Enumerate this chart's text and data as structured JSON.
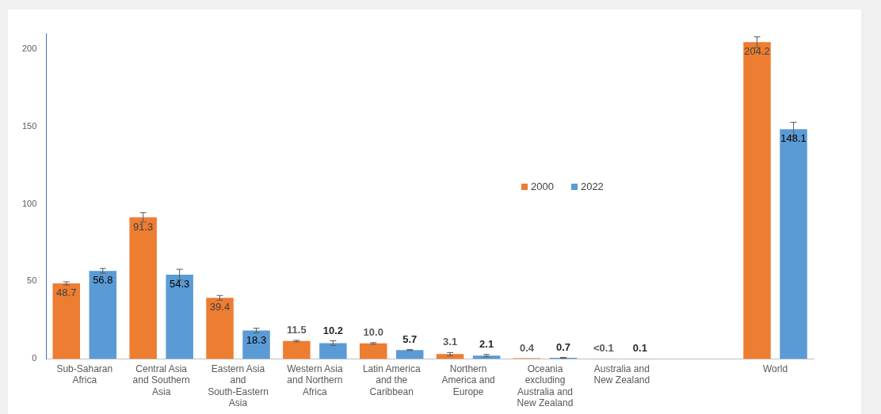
{
  "chart_data": {
    "type": "bar",
    "categories": [
      "Sub-Saharan Africa",
      "Central Asia and Southern Asia",
      "Eastern Asia and South-Eastern Asia",
      "Western Asia and Northern Africa",
      "Latin America and the Caribbean",
      "Northern America and Europe",
      "Oceania excluding Australia and New Zealand",
      "Australia and New Zealand",
      null,
      "World"
    ],
    "series": [
      {
        "name": "2000",
        "color": "#ed7d31",
        "values": [
          48.7,
          91.3,
          39.4,
          11.5,
          10.0,
          3.1,
          0.4,
          0.05,
          null,
          204.2
        ],
        "errors": [
          1,
          3,
          1.5,
          0.5,
          0.5,
          1,
          null,
          null,
          null,
          3.5
        ],
        "value_labels": [
          "48.7",
          "91.3",
          "39.4",
          "11.5",
          "10.0",
          "3.1",
          "0.4",
          "<0.1",
          null,
          "204.2"
        ]
      },
      {
        "name": "2022",
        "color": "#5b9bd5",
        "values": [
          56.8,
          54.3,
          18.3,
          10.2,
          5.7,
          2.1,
          0.7,
          0.1,
          null,
          148.1
        ],
        "errors": [
          1.5,
          3.5,
          1.5,
          1.5,
          0.3,
          0.8,
          0.3,
          null,
          null,
          4.5
        ],
        "value_labels": [
          "56.8",
          "54.3",
          "18.3",
          "10.2",
          "5.7",
          "2.1",
          "0.7",
          "0.1",
          null,
          "148.1"
        ]
      }
    ],
    "ylim": [
      0,
      210
    ],
    "yticks": [
      0,
      50,
      100,
      150,
      200
    ],
    "grid": false,
    "legend": "center"
  }
}
